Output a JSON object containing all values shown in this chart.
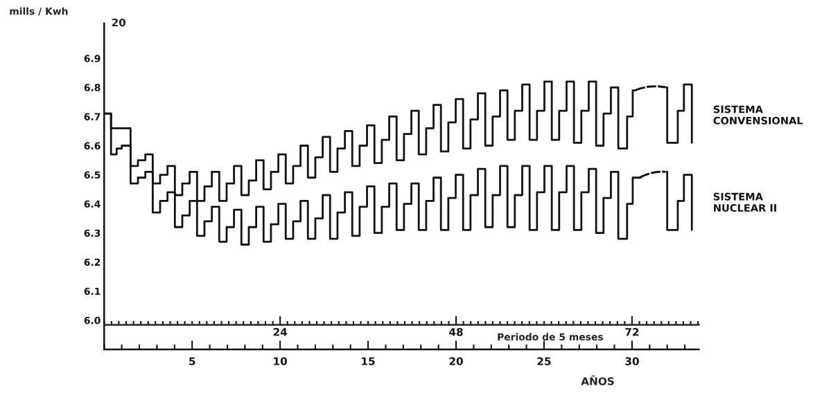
{
  "chart_data": {
    "type": "step",
    "ylabel": "mills / Kwh",
    "xlabel": "AÑOS",
    "x2label": "Periodo de 5 meses",
    "xlim": [
      0,
      33.8
    ],
    "xticks": [
      5,
      10,
      15,
      20,
      25,
      30
    ],
    "x2lim": [
      0,
      81.12
    ],
    "x2ticks": [
      24,
      48,
      72
    ],
    "ylim": [
      5.9,
      7.02
    ],
    "yticks": [
      {
        "value": 6.0,
        "label": "6.0"
      },
      6.1,
      6.2,
      6.3,
      6.4,
      6.5,
      6.6,
      6.7,
      6.8,
      6.9
    ],
    "annotations": [
      "20"
    ],
    "grid": false,
    "legend": false,
    "marker": "none",
    "series": [
      {
        "name": "SISTEMA\nCONVENSIONAL",
        "color": "#111111",
        "line_style": "solid",
        "x": [
          0,
          0.39,
          1.5,
          1.92,
          2.34,
          2.76,
          3.18,
          3.6,
          4.02,
          4.44,
          4.86,
          5.28,
          5.7,
          6.12,
          6.54,
          6.96,
          7.38,
          7.8,
          8.22,
          8.64,
          9.06,
          9.48,
          9.9,
          10.32,
          10.74,
          11.16,
          11.58,
          12.0,
          12.42,
          12.84,
          13.26,
          13.68,
          14.1,
          14.52,
          14.94,
          15.36,
          15.78,
          16.2,
          16.62,
          17.04,
          17.46,
          17.88,
          18.3,
          18.72,
          19.14,
          19.56,
          19.98,
          20.4,
          20.82,
          21.24,
          21.66,
          22.08,
          22.5,
          22.92,
          23.34,
          23.76,
          24.18,
          24.6,
          25.02,
          25.44,
          25.86,
          26.28,
          26.7,
          27.12,
          27.54,
          27.96,
          28.38,
          28.8,
          29.22,
          29.72,
          30.04,
          30.16,
          30.2,
          31.97,
          32.0,
          32.6,
          32.95,
          33.4
        ],
        "values": [
          6.71,
          6.66,
          6.53,
          6.55,
          6.57,
          6.47,
          6.5,
          6.53,
          6.43,
          6.47,
          6.51,
          6.41,
          6.46,
          6.51,
          6.41,
          6.47,
          6.53,
          6.43,
          6.48,
          6.55,
          6.45,
          6.51,
          6.57,
          6.47,
          6.53,
          6.6,
          6.49,
          6.56,
          6.63,
          6.51,
          6.59,
          6.65,
          6.53,
          6.6,
          6.67,
          6.54,
          6.62,
          6.7,
          6.55,
          6.64,
          6.72,
          6.57,
          6.66,
          6.74,
          6.58,
          6.68,
          6.76,
          6.59,
          6.69,
          6.78,
          6.6,
          6.7,
          6.79,
          6.62,
          6.72,
          6.81,
          6.62,
          6.72,
          6.82,
          6.62,
          6.72,
          6.82,
          6.61,
          6.72,
          6.82,
          6.6,
          6.71,
          6.8,
          6.59,
          6.7,
          6.79,
          6.79,
          null,
          6.8,
          6.61,
          6.72,
          6.81,
          6.61
        ]
      },
      {
        "name": "SISTEMA\nNUCLEAR II",
        "color": "#111111",
        "line_style": "solid",
        "x": [
          0,
          0.39,
          0.71,
          1.0,
          1.5,
          1.92,
          2.34,
          2.76,
          3.18,
          3.6,
          4.02,
          4.44,
          4.86,
          5.28,
          5.7,
          6.12,
          6.54,
          6.96,
          7.38,
          7.8,
          8.22,
          8.64,
          9.06,
          9.48,
          9.9,
          10.32,
          10.74,
          11.16,
          11.58,
          12.0,
          12.42,
          12.84,
          13.26,
          13.68,
          14.1,
          14.52,
          14.94,
          15.36,
          15.78,
          16.2,
          16.62,
          17.04,
          17.46,
          17.88,
          18.3,
          18.72,
          19.14,
          19.56,
          19.98,
          20.4,
          20.82,
          21.24,
          21.66,
          22.08,
          22.5,
          22.92,
          23.34,
          23.76,
          24.18,
          24.6,
          25.02,
          25.44,
          25.86,
          26.28,
          26.7,
          27.12,
          27.54,
          27.96,
          28.38,
          28.8,
          29.22,
          29.72,
          30.04,
          30.43,
          30.5,
          31.97,
          32.0,
          32.6,
          32.95,
          33.4
        ],
        "values": [
          6.71,
          6.57,
          6.59,
          6.6,
          6.47,
          6.49,
          6.51,
          6.37,
          6.41,
          6.44,
          6.32,
          6.36,
          6.41,
          6.29,
          6.34,
          6.39,
          6.27,
          6.32,
          6.38,
          6.26,
          6.32,
          6.39,
          6.27,
          6.33,
          6.4,
          6.28,
          6.34,
          6.41,
          6.28,
          6.35,
          6.43,
          6.28,
          6.37,
          6.44,
          6.29,
          6.39,
          6.46,
          6.3,
          6.39,
          6.47,
          6.31,
          6.4,
          6.47,
          6.31,
          6.41,
          6.49,
          6.31,
          6.42,
          6.5,
          6.31,
          6.43,
          6.52,
          6.32,
          6.43,
          6.53,
          6.32,
          6.43,
          6.53,
          6.31,
          6.44,
          6.53,
          6.31,
          6.44,
          6.53,
          6.31,
          6.44,
          6.52,
          6.3,
          6.42,
          6.51,
          6.28,
          6.4,
          6.49,
          6.49,
          null,
          6.51,
          6.31,
          6.41,
          6.5,
          6.31
        ]
      }
    ]
  }
}
